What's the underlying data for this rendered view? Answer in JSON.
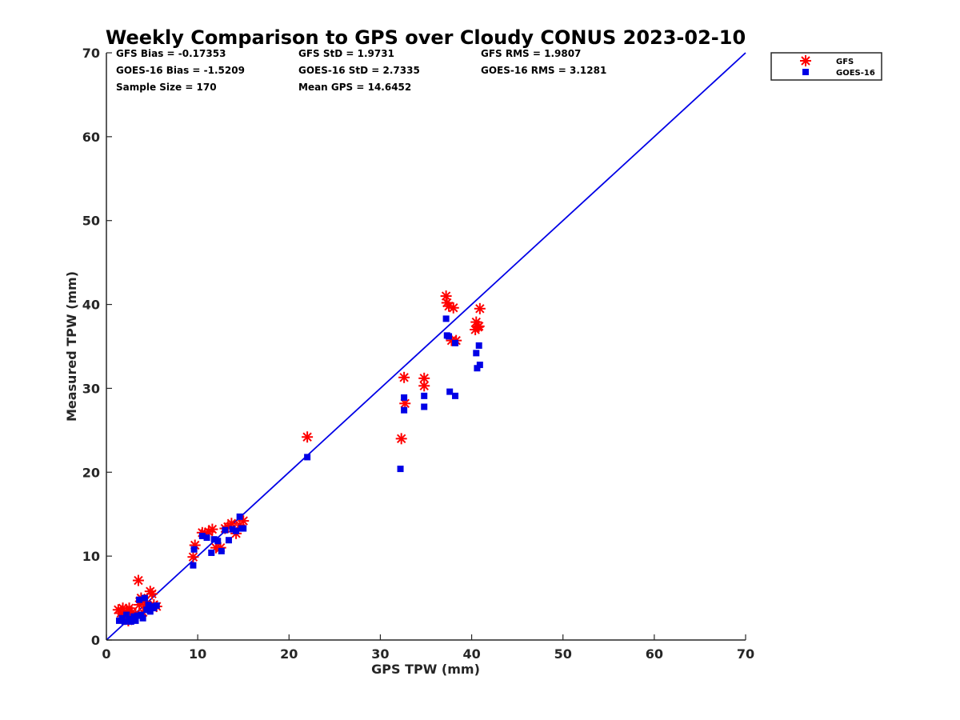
{
  "chart_data": {
    "type": "scatter",
    "title": "Weekly Comparison to GPS over Cloudy CONUS 2023-02-10",
    "xlabel": "GPS TPW (mm)",
    "ylabel": "Measured TPW (mm)",
    "xlim": [
      0,
      70
    ],
    "ylim": [
      0,
      70
    ],
    "xticks": [
      "0",
      "10",
      "20",
      "30",
      "40",
      "50",
      "60",
      "70"
    ],
    "yticks": [
      "0",
      "10",
      "20",
      "30",
      "40",
      "50",
      "60",
      "70"
    ],
    "grid": false,
    "legend_position": "outside top-right",
    "stats": [
      "GFS Bias = -0.17353",
      "GOES-16 Bias = -1.5209",
      "Sample Size = 170",
      "GFS StD = 1.9731",
      "GOES-16 StD = 2.7335",
      "Mean GPS = 14.6452",
      "GFS RMS = 1.9807",
      "GOES-16 RMS = 3.1281"
    ],
    "reference_line": {
      "x": [
        0,
        70
      ],
      "y": [
        0,
        70
      ],
      "color": "#0000e6"
    },
    "series": [
      {
        "name": "GFS",
        "marker": "asterisk",
        "color": "#ff0000",
        "x": [
          1.3,
          1.6,
          1.8,
          2.0,
          2.2,
          2.4,
          2.5,
          2.6,
          2.8,
          3.0,
          3.2,
          3.5,
          3.6,
          3.8,
          4.0,
          4.2,
          4.5,
          4.8,
          5.0,
          5.2,
          5.5,
          9.5,
          9.7,
          10.5,
          10.8,
          11.2,
          11.6,
          12.0,
          12.5,
          13.0,
          13.3,
          13.7,
          14.2,
          14.6,
          15.0,
          22.0,
          32.3,
          32.7,
          32.6,
          34.8,
          34.8,
          37.2,
          37.3,
          37.5,
          37.8,
          38.0,
          38.3,
          40.4,
          40.5,
          40.7,
          40.8,
          40.9
        ],
        "y": [
          3.6,
          3.2,
          3.8,
          2.8,
          3.4,
          2.3,
          3.8,
          3.0,
          3.3,
          2.7,
          3.1,
          7.1,
          4.2,
          5.0,
          3.3,
          4.6,
          4.0,
          5.8,
          5.5,
          4.2,
          4.0,
          9.9,
          11.3,
          12.8,
          12.7,
          12.9,
          13.2,
          11.0,
          11.0,
          13.3,
          13.5,
          13.9,
          12.7,
          13.7,
          14.2,
          24.2,
          24.0,
          28.2,
          31.3,
          31.2,
          30.3,
          41.0,
          40.2,
          39.8,
          35.7,
          39.6,
          35.7,
          37.0,
          37.9,
          37.3,
          37.4,
          39.5
        ]
      },
      {
        "name": "GOES-16",
        "marker": "square",
        "color": "#0000e6",
        "x": [
          1.4,
          1.7,
          2.0,
          2.2,
          2.5,
          2.7,
          3.0,
          3.2,
          3.4,
          3.6,
          3.8,
          4.0,
          4.2,
          4.4,
          4.6,
          4.8,
          5.0,
          5.2,
          5.5,
          9.5,
          9.6,
          10.5,
          11.0,
          11.5,
          11.8,
          12.2,
          12.6,
          13.0,
          13.4,
          13.8,
          14.2,
          14.6,
          14.8,
          15.0,
          22.0,
          32.2,
          32.6,
          32.6,
          34.8,
          34.8,
          37.2,
          37.3,
          37.5,
          37.6,
          38.2,
          38.2,
          40.5,
          40.6,
          40.8,
          40.9
        ],
        "y": [
          2.3,
          2.6,
          2.2,
          3.0,
          2.5,
          2.2,
          2.8,
          2.3,
          2.9,
          4.8,
          3.0,
          2.6,
          5.0,
          3.6,
          4.2,
          3.4,
          4.0,
          3.8,
          4.1,
          8.9,
          10.8,
          12.4,
          12.2,
          10.4,
          12.0,
          11.8,
          10.6,
          13.1,
          11.9,
          13.2,
          13.0,
          14.7,
          13.3,
          13.3,
          21.8,
          20.4,
          27.4,
          28.9,
          29.1,
          27.8,
          38.3,
          36.3,
          36.2,
          29.6,
          29.1,
          35.4,
          34.2,
          32.4,
          35.1,
          32.8
        ]
      }
    ]
  }
}
